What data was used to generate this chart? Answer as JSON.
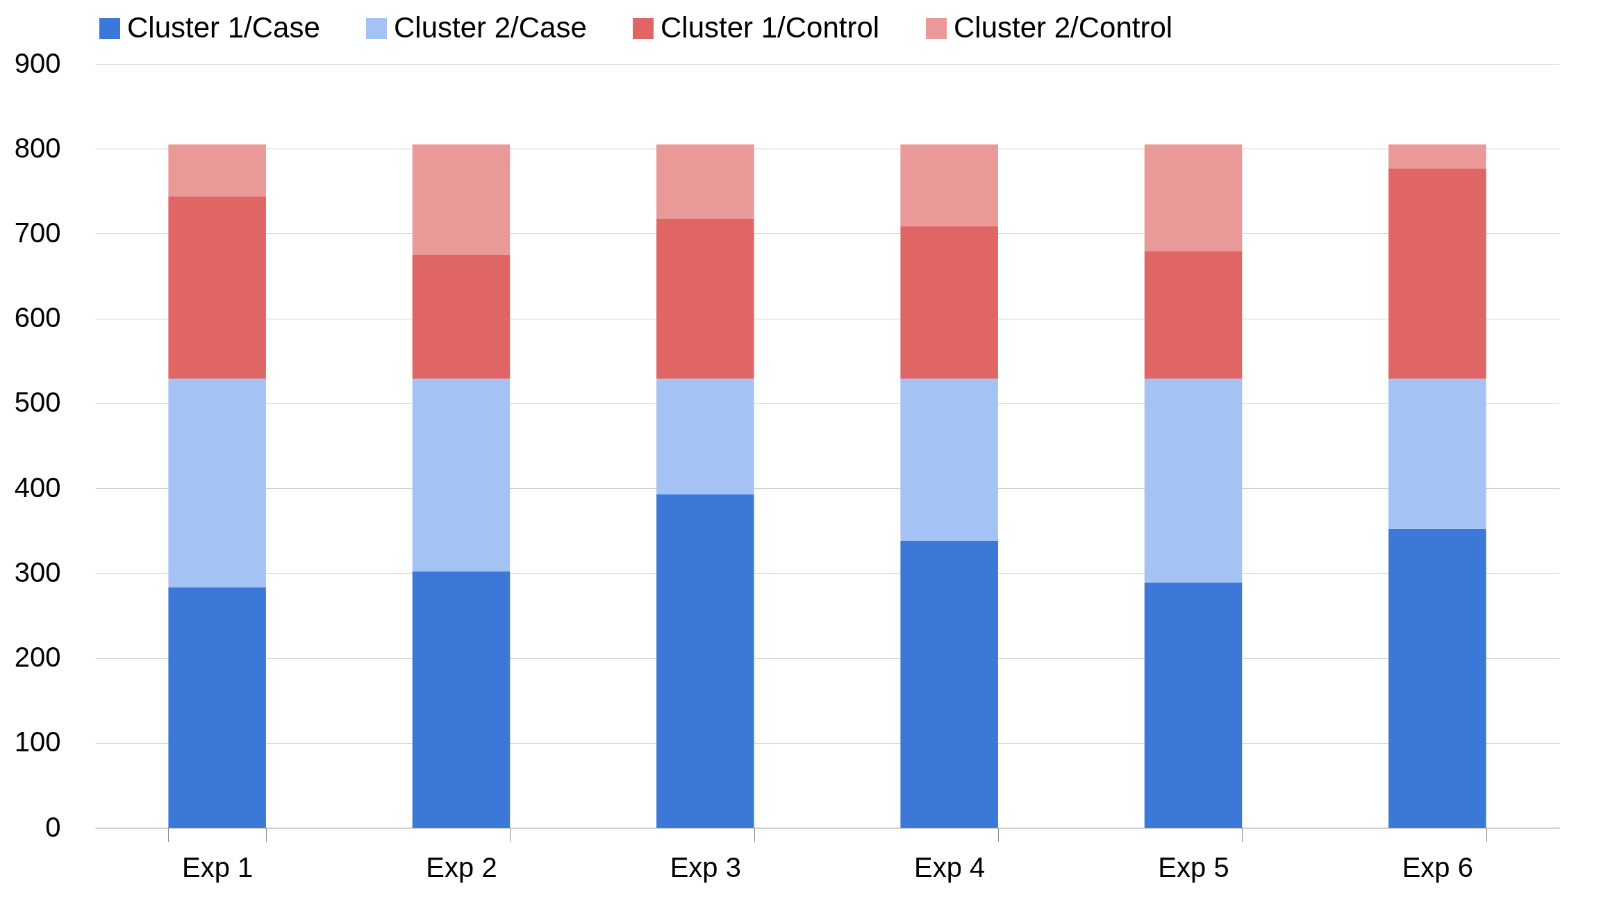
{
  "chart_data": {
    "type": "bar",
    "stacked": true,
    "categories": [
      "Exp 1",
      "Exp 2",
      "Exp 3",
      "Exp 4",
      "Exp 5",
      "Exp 6"
    ],
    "series": [
      {
        "name": "Cluster 1/Case",
        "color": "#3c78d8",
        "values": [
          283,
          302,
          393,
          338,
          289,
          352
        ]
      },
      {
        "name": "Cluster 2/Case",
        "color": "#a4c2f4",
        "values": [
          246,
          227,
          136,
          191,
          240,
          177
        ]
      },
      {
        "name": "Cluster 1/Control",
        "color": "#e06666",
        "values": [
          215,
          146,
          189,
          180,
          150,
          248
        ]
      },
      {
        "name": "Cluster 2/Control",
        "color": "#ea9999",
        "values": [
          61,
          130,
          87,
          96,
          126,
          28
        ]
      }
    ],
    "ylim": [
      0,
      900
    ],
    "yticks": [
      0,
      100,
      200,
      300,
      400,
      500,
      600,
      700,
      800,
      900
    ],
    "grid": "y",
    "legend": "top"
  }
}
